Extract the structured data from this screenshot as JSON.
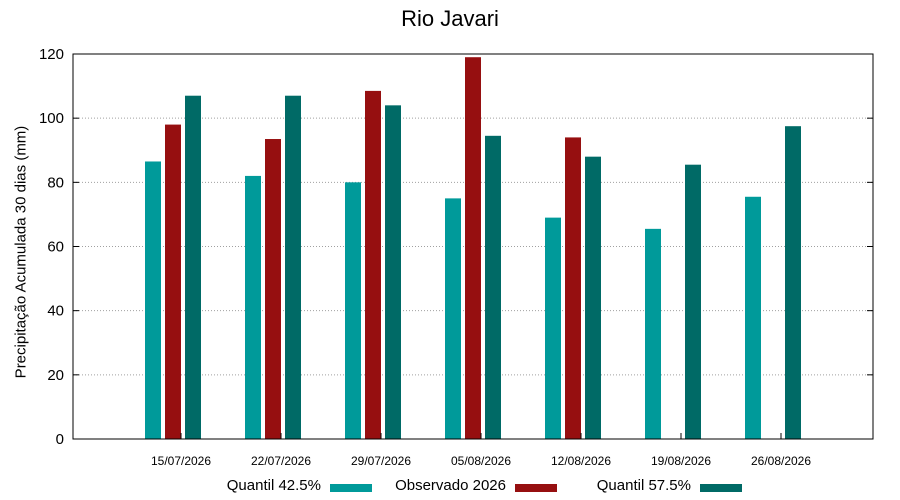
{
  "chart_data": {
    "type": "bar",
    "title": "Rio Javari",
    "ylabel": "Precipitação Acumulada 30 dias (mm)",
    "xlabel": "",
    "ylim": [
      0,
      120
    ],
    "yticks": [
      0,
      20,
      40,
      60,
      80,
      100,
      120
    ],
    "grid": true,
    "legend_position": "bottom",
    "categories": [
      "15/07/2026",
      "22/07/2026",
      "29/07/2026",
      "05/08/2026",
      "12/08/2026",
      "19/08/2026",
      "26/08/2026"
    ],
    "series": [
      {
        "name": "Quantil 42.5%",
        "color": "#009a9a",
        "values": [
          86.5,
          82,
          80,
          75,
          69,
          65.5,
          75.5
        ]
      },
      {
        "name": "Observado 2026",
        "color": "#960f10",
        "values": [
          98,
          93.5,
          108.5,
          119,
          94,
          null,
          null
        ]
      },
      {
        "name": "Quantil 57.5%",
        "color": "#006a66",
        "values": [
          107,
          107,
          104,
          94.5,
          88,
          85.5,
          97.5
        ]
      }
    ]
  }
}
